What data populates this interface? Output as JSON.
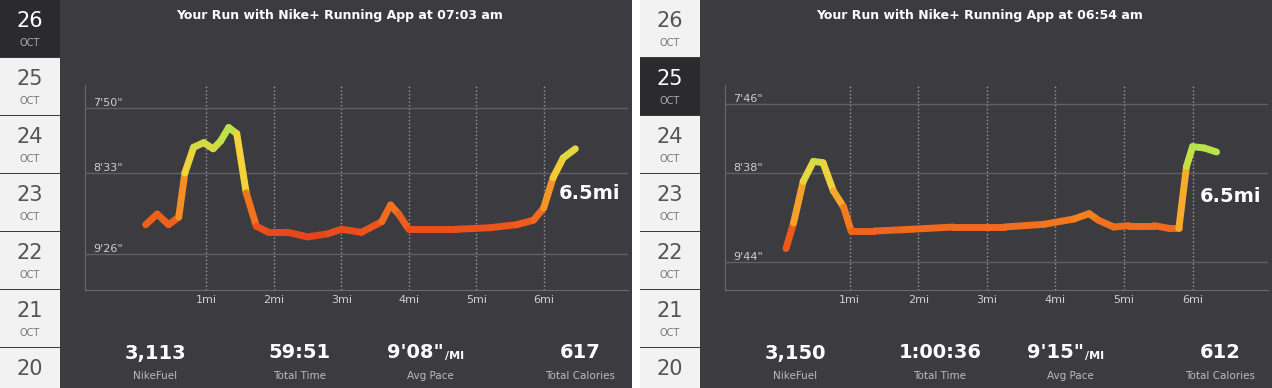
{
  "chart_data": [
    {
      "type": "line",
      "title": "Your Run with Nike+ Running App at 07:03 am",
      "x": [
        0.1,
        0.27,
        0.44,
        0.59,
        0.68,
        0.81,
        0.96,
        1.1,
        1.21,
        1.33,
        1.45,
        1.59,
        1.74,
        1.92,
        2.2,
        2.5,
        2.8,
        3.0,
        3.3,
        3.6,
        3.73,
        3.85,
        4.0,
        4.3,
        4.7,
        5.2,
        5.6,
        5.85,
        6.0,
        6.14,
        6.29,
        6.47
      ],
      "values": [
        547,
        540,
        547,
        542,
        513,
        496,
        493,
        497,
        492,
        483,
        487,
        526,
        548,
        552,
        552,
        555,
        553,
        550,
        552,
        545,
        534,
        540,
        550,
        550,
        550,
        549,
        547,
        544,
        536,
        516,
        503,
        497
      ],
      "xlim": [
        -0.8,
        7.25
      ],
      "xticks": [
        {
          "value": 1,
          "label": "1mi"
        },
        {
          "value": 2,
          "label": "2mi"
        },
        {
          "value": 3,
          "label": "3mi"
        },
        {
          "value": 4,
          "label": "4mi"
        },
        {
          "value": 5,
          "label": "5mi"
        },
        {
          "value": 6,
          "label": "6mi"
        }
      ],
      "ylim": [
        590,
        455
      ],
      "yticks": [
        {
          "value": 470,
          "label": "7'50\""
        },
        {
          "value": 513,
          "label": "8'33\""
        },
        {
          "value": 566,
          "label": "9'26\""
        }
      ],
      "grid": true,
      "annotation": "6.5mi",
      "dates": [
        {
          "day": "26",
          "month": "OCT"
        },
        {
          "day": "25",
          "month": "OCT"
        },
        {
          "day": "24",
          "month": "OCT"
        },
        {
          "day": "23",
          "month": "OCT"
        },
        {
          "day": "22",
          "month": "OCT"
        },
        {
          "day": "21",
          "month": "OCT"
        },
        {
          "day": "20"
        }
      ],
      "selected_date": "26",
      "stats": [
        {
          "value": "3,113",
          "label": "NikeFuel"
        },
        {
          "value": "59:51",
          "label": "Total Time"
        },
        {
          "value": "9'08\"",
          "unit": "/MI",
          "label": "Avg Pace"
        },
        {
          "value": "617",
          "label": "Total Calories"
        }
      ]
    },
    {
      "type": "line",
      "title": "Your Run with Nike+ Running App at 06:54 am",
      "x": [
        0.07,
        0.18,
        0.32,
        0.47,
        0.61,
        0.76,
        0.91,
        1.02,
        1.35,
        1.78,
        2.51,
        3.25,
        3.83,
        4.27,
        4.49,
        4.63,
        4.85,
        5.07,
        5.44,
        5.66,
        5.8,
        5.91,
        6.0,
        6.17,
        6.35
      ],
      "values": [
        574,
        555,
        524,
        509,
        510,
        531,
        543,
        561,
        561,
        560,
        558,
        558,
        556,
        552,
        548,
        553,
        558,
        557,
        557,
        559,
        559,
        513,
        498,
        499,
        502
      ],
      "xlim": [
        -0.82,
        7.1
      ],
      "xticks": [
        {
          "value": 1,
          "label": "1mi"
        },
        {
          "value": 2,
          "label": "2mi"
        },
        {
          "value": 3,
          "label": "3mi"
        },
        {
          "value": 4,
          "label": "4mi"
        },
        {
          "value": 5,
          "label": "5mi"
        },
        {
          "value": 6,
          "label": "6mi"
        }
      ],
      "ylim": [
        605,
        452
      ],
      "yticks": [
        {
          "value": 466,
          "label": "7'46\""
        },
        {
          "value": 518,
          "label": "8'38\""
        },
        {
          "value": 584,
          "label": "9'44\""
        }
      ],
      "grid": true,
      "annotation": "6.5mi",
      "dates": [
        {
          "day": "26",
          "month": "OCT"
        },
        {
          "day": "25",
          "month": "OCT"
        },
        {
          "day": "24",
          "month": "OCT"
        },
        {
          "day": "23",
          "month": "OCT"
        },
        {
          "day": "22",
          "month": "OCT"
        },
        {
          "day": "21",
          "month": "OCT"
        },
        {
          "day": "20"
        }
      ],
      "selected_date": "25",
      "stats": [
        {
          "value": "3,150",
          "label": "NikeFuel"
        },
        {
          "value": "1:00:36",
          "label": "Total Time"
        },
        {
          "value": "9'15\"",
          "unit": "/MI",
          "label": "Avg Pace"
        },
        {
          "value": "612",
          "label": "Total Calories"
        }
      ]
    }
  ]
}
